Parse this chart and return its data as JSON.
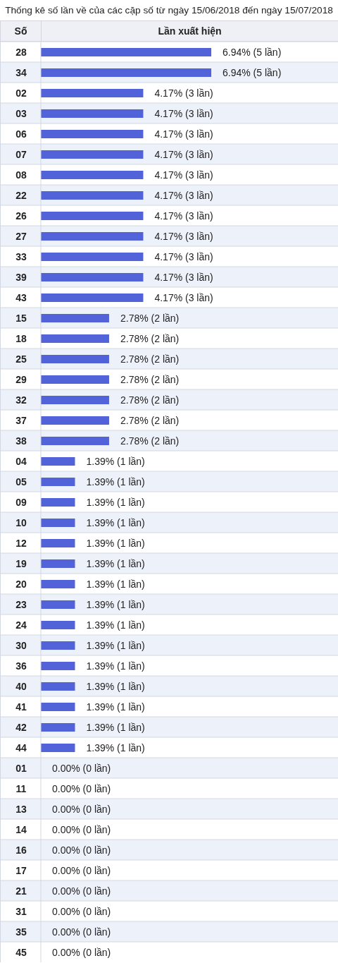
{
  "chart_data": {
    "type": "bar",
    "orientation": "horizontal",
    "title": "Thống kê số lần về của các cặp số từ ngày 15/06/2018 đến ngày 15/07/2018",
    "ylabel": "Số",
    "xlabel": "Lần xuất hiện",
    "categories": [
      "28",
      "34",
      "02",
      "03",
      "06",
      "07",
      "08",
      "22",
      "26",
      "27",
      "33",
      "39",
      "43",
      "15",
      "18",
      "25",
      "29",
      "32",
      "37",
      "38",
      "04",
      "05",
      "09",
      "10",
      "12",
      "19",
      "20",
      "23",
      "24",
      "30",
      "36",
      "40",
      "41",
      "42",
      "44",
      "01",
      "11",
      "13",
      "14",
      "16",
      "17",
      "21",
      "31",
      "35",
      "45"
    ],
    "values": [
      6.94,
      6.94,
      4.17,
      4.17,
      4.17,
      4.17,
      4.17,
      4.17,
      4.17,
      4.17,
      4.17,
      4.17,
      4.17,
      2.78,
      2.78,
      2.78,
      2.78,
      2.78,
      2.78,
      2.78,
      1.39,
      1.39,
      1.39,
      1.39,
      1.39,
      1.39,
      1.39,
      1.39,
      1.39,
      1.39,
      1.39,
      1.39,
      1.39,
      1.39,
      1.39,
      0,
      0,
      0,
      0,
      0,
      0,
      0,
      0,
      0,
      0
    ],
    "value_labels": [
      "6.94% (5 lần)",
      "6.94% (5 lần)",
      "4.17% (3 lần)",
      "4.17% (3 lần)",
      "4.17% (3 lần)",
      "4.17% (3 lần)",
      "4.17% (3 lần)",
      "4.17% (3 lần)",
      "4.17% (3 lần)",
      "4.17% (3 lần)",
      "4.17% (3 lần)",
      "4.17% (3 lần)",
      "4.17% (3 lần)",
      "2.78% (2 lần)",
      "2.78% (2 lần)",
      "2.78% (2 lần)",
      "2.78% (2 lần)",
      "2.78% (2 lần)",
      "2.78% (2 lần)",
      "2.78% (2 lần)",
      "1.39% (1 lần)",
      "1.39% (1 lần)",
      "1.39% (1 lần)",
      "1.39% (1 lần)",
      "1.39% (1 lần)",
      "1.39% (1 lần)",
      "1.39% (1 lần)",
      "1.39% (1 lần)",
      "1.39% (1 lần)",
      "1.39% (1 lần)",
      "1.39% (1 lần)",
      "1.39% (1 lần)",
      "1.39% (1 lần)",
      "1.39% (1 lần)",
      "1.39% (1 lần)",
      "0.00% (0 lần)",
      "0.00% (0 lần)",
      "0.00% (0 lần)",
      "0.00% (0 lần)",
      "0.00% (0 lần)",
      "0.00% (0 lần)",
      "0.00% (0 lần)",
      "0.00% (0 lần)",
      "0.00% (0 lần)",
      "0.00% (0 lần)"
    ],
    "color": "#5262d8",
    "xlim": [
      0,
      12.1
    ],
    "grid": "y",
    "tick_labels": "y"
  }
}
